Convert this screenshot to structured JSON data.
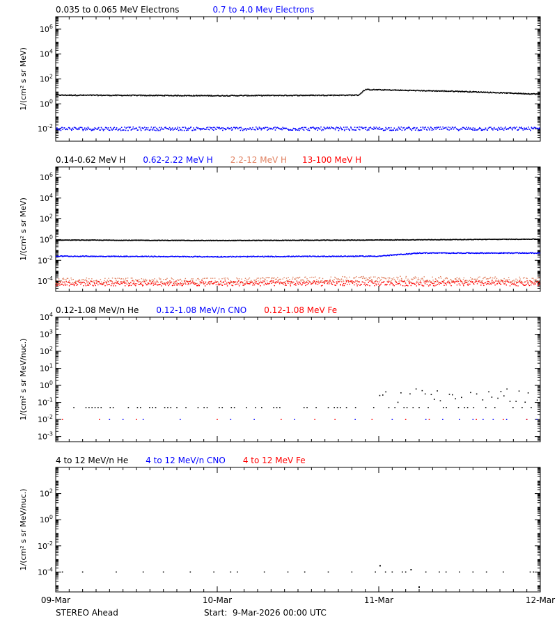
{
  "footer": {
    "spacecraft": "STEREO Ahead",
    "start": "Start:  9-Mar-2026 00:00 UTC"
  },
  "chart_data": [
    {
      "type": "scatter",
      "y_scale": "log",
      "ylim": [
        0.001,
        10000000
      ],
      "ylabel": "1/(cm² s sr MeV)",
      "y_ticks": [
        {
          "value": 0.01,
          "label": "10⁻²"
        },
        {
          "value": 1,
          "label": "10⁰"
        },
        {
          "value": 100,
          "label": "10²"
        },
        {
          "value": 10000,
          "label": "10⁴"
        },
        {
          "value": 1000000,
          "label": "10⁶"
        }
      ],
      "xlim": [
        "2026-03-09",
        "2026-03-12"
      ],
      "series": [
        {
          "name": "0.035 to 0.065 MeV Electrons",
          "color": "#000000",
          "points": [
            [
              "2026-03-09",
              5
            ],
            [
              "2026-03-10",
              4.5
            ],
            [
              "2026-03-10 21:00",
              5
            ],
            [
              "2026-03-10 22:00",
              14
            ],
            [
              "2026-03-11 12:00",
              10
            ],
            [
              "2026-03-12",
              6
            ]
          ]
        },
        {
          "name": "0.7 to 4.0 Mev Electrons",
          "color": "#0000ff",
          "points": [
            [
              "2026-03-09",
              0.01
            ],
            [
              "2026-03-10",
              0.01
            ],
            [
              "2026-03-11",
              0.01
            ],
            [
              "2026-03-12",
              0.01
            ]
          ]
        }
      ]
    },
    {
      "type": "scatter",
      "y_scale": "log",
      "ylim": [
        1e-05,
        10000000
      ],
      "ylabel": "1/(cm² s sr MeV)",
      "y_ticks": [
        {
          "value": 0.0001,
          "label": "10⁻⁴"
        },
        {
          "value": 0.01,
          "label": "10⁻²"
        },
        {
          "value": 1,
          "label": "10⁰"
        },
        {
          "value": 100,
          "label": "10²"
        },
        {
          "value": 10000,
          "label": "10⁴"
        },
        {
          "value": 1000000,
          "label": "10⁶"
        }
      ],
      "xlim": [
        "2026-03-09",
        "2026-03-12"
      ],
      "series": [
        {
          "name": "0.14-0.62 MeV H",
          "color": "#000000",
          "points": [
            [
              "2026-03-09",
              0.9
            ],
            [
              "2026-03-10",
              0.8
            ],
            [
              "2026-03-11",
              0.9
            ],
            [
              "2026-03-12",
              1.1
            ]
          ]
        },
        {
          "name": "0.62-2.22 MeV H",
          "color": "#0000ff",
          "points": [
            [
              "2026-03-09",
              0.025
            ],
            [
              "2026-03-10",
              0.022
            ],
            [
              "2026-03-11",
              0.025
            ],
            [
              "2026-03-11 06:00",
              0.05
            ],
            [
              "2026-03-12",
              0.05
            ]
          ]
        },
        {
          "name": "2.2-12 MeV H",
          "color": "#e08060",
          "points": [
            [
              "2026-03-09",
              0.0001
            ],
            [
              "2026-03-10",
              0.0001
            ],
            [
              "2026-03-11",
              0.00015
            ],
            [
              "2026-03-12",
              0.00012
            ]
          ]
        },
        {
          "name": "13-100 MeV H",
          "color": "#ff0000",
          "points": [
            [
              "2026-03-09",
              6e-05
            ],
            [
              "2026-03-10",
              6e-05
            ],
            [
              "2026-03-11",
              6e-05
            ],
            [
              "2026-03-12",
              6e-05
            ]
          ]
        }
      ]
    },
    {
      "type": "scatter",
      "y_scale": "log",
      "ylim": [
        0.0005,
        10000
      ],
      "ylabel": "1/(cm² s sr MeV/nuc.)",
      "y_ticks": [
        {
          "value": 0.001,
          "label": "10⁻³"
        },
        {
          "value": 0.01,
          "label": "10⁻²"
        },
        {
          "value": 0.1,
          "label": "10⁻¹"
        },
        {
          "value": 1,
          "label": "10⁰"
        },
        {
          "value": 10,
          "label": "10¹"
        },
        {
          "value": 100,
          "label": "10²"
        },
        {
          "value": 1000,
          "label": "10³"
        },
        {
          "value": 10000,
          "label": "10⁴"
        }
      ],
      "xlim": [
        "2026-03-09",
        "2026-03-12"
      ],
      "series": [
        {
          "name": "0.12-1.08 MeV/n He",
          "color": "#000000",
          "points": [
            [
              "2026-03-09",
              0.05
            ],
            [
              "2026-03-10",
              0.05
            ],
            [
              "2026-03-11",
              0.05
            ],
            [
              "2026-03-11 12:00",
              0.2
            ],
            [
              "2026-03-12",
              0.2
            ]
          ]
        },
        {
          "name": "0.12-1.08 MeV/n CNO",
          "color": "#0000ff",
          "points": [
            [
              "2026-03-09",
              0.01
            ],
            [
              "2026-03-12",
              0.01
            ]
          ]
        },
        {
          "name": "0.12-1.08 MeV Fe",
          "color": "#ff0000",
          "points": [
            [
              "2026-03-09",
              0.01
            ],
            [
              "2026-03-12",
              0.01
            ]
          ]
        }
      ]
    },
    {
      "type": "scatter",
      "y_scale": "log",
      "ylim": [
        3e-06,
        10000
      ],
      "ylabel": "1/(cm² s sr MeV/nuc.)",
      "y_ticks": [
        {
          "value": 0.0001,
          "label": "10⁻⁴"
        },
        {
          "value": 0.01,
          "label": "10⁻²"
        },
        {
          "value": 1,
          "label": "10⁰"
        },
        {
          "value": 100,
          "label": "10²"
        }
      ],
      "xlim": [
        "2026-03-09",
        "2026-03-12"
      ],
      "x_tick_labels": [
        "09-Mar",
        "10-Mar",
        "11-Mar",
        "12-Mar"
      ],
      "series": [
        {
          "name": "4 to 12 MeV/n He",
          "color": "#000000",
          "points": [
            [
              "2026-03-09",
              0.0001
            ],
            [
              "2026-03-12",
              0.0001
            ]
          ]
        },
        {
          "name": "4 to 12 MeV/n CNO",
          "color": "#0000ff",
          "points": []
        },
        {
          "name": "4 to 12 MeV Fe",
          "color": "#ff0000",
          "points": []
        }
      ]
    }
  ]
}
